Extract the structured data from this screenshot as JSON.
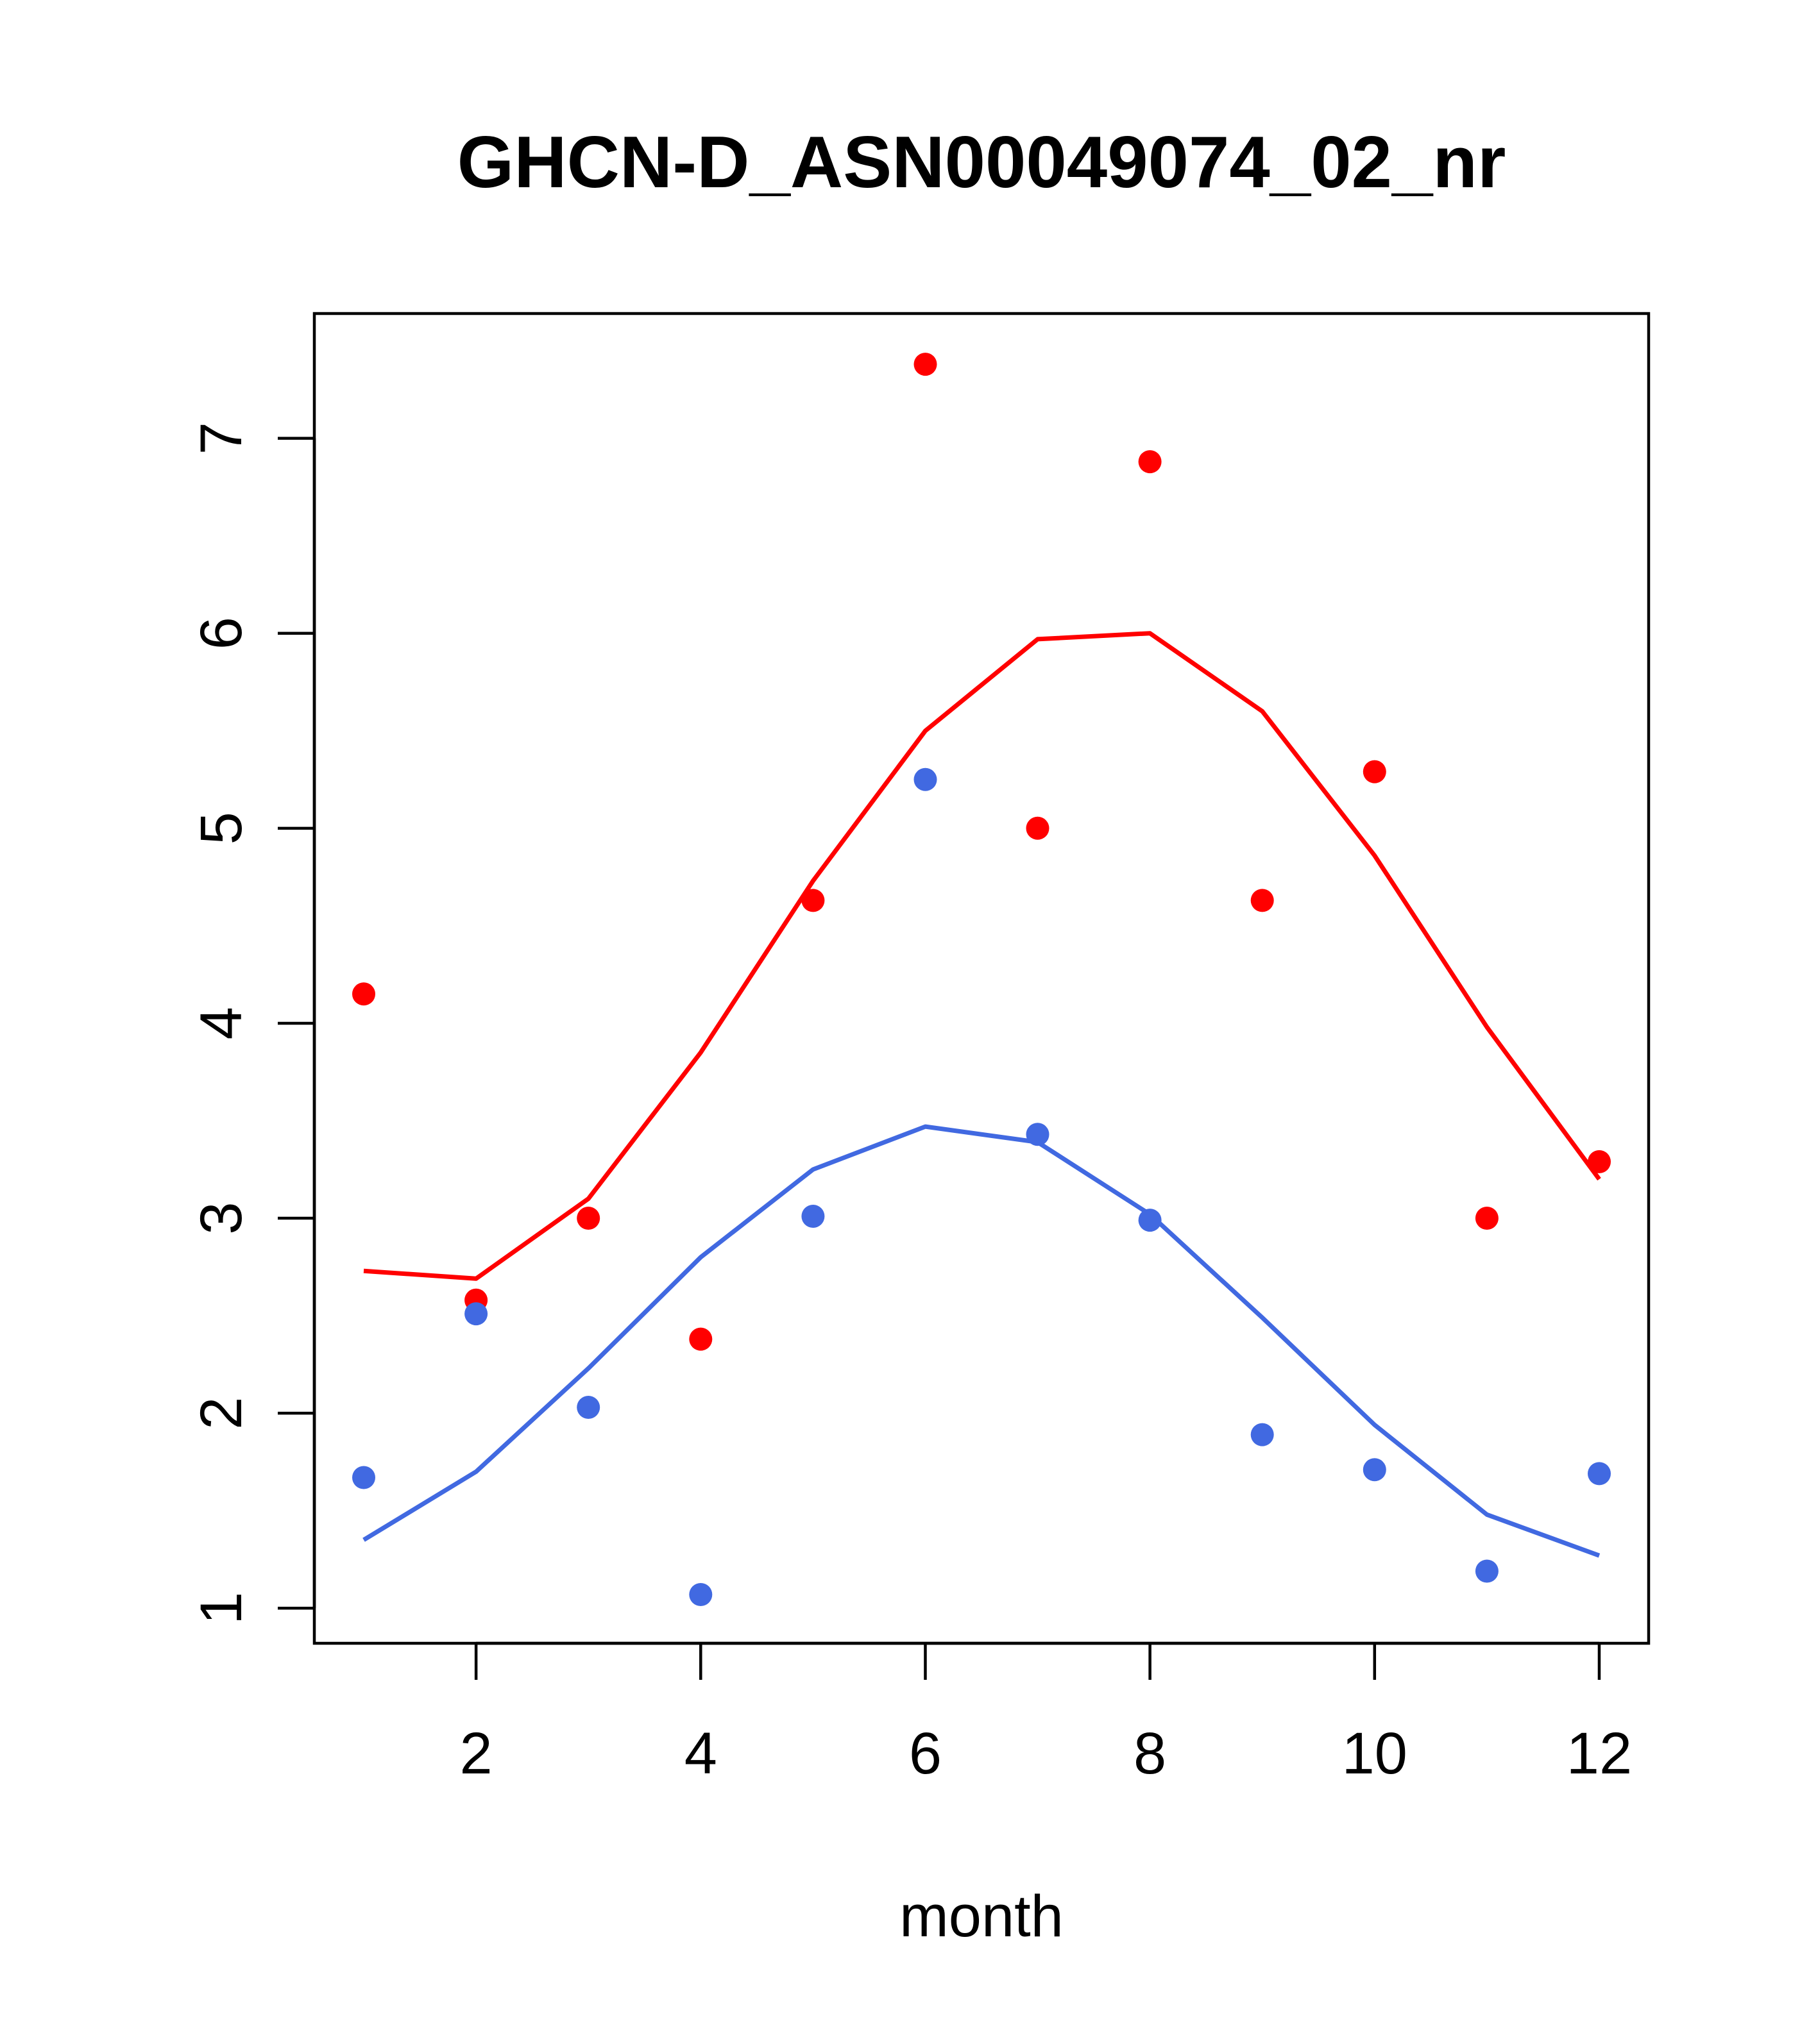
{
  "chart_data": {
    "type": "scatter",
    "title": "GHCN-D_ASN00049074_02_nr",
    "xlabel": "month",
    "ylabel": "",
    "xlim": [
      0.56,
      12.44
    ],
    "ylim": [
      0.82,
      7.64
    ],
    "xticks": [
      2,
      4,
      6,
      8,
      10,
      12
    ],
    "yticks": [
      1,
      2,
      3,
      4,
      5,
      6,
      7
    ],
    "grid": false,
    "series": [
      {
        "color": "#ff0000",
        "points": {
          "x": [
            1,
            2,
            3,
            4,
            5,
            6,
            7,
            8,
            9,
            10,
            11,
            12
          ],
          "y": [
            4.15,
            2.58,
            3.0,
            2.38,
            4.63,
            7.38,
            5.0,
            6.88,
            4.63,
            5.29,
            3.0,
            3.29
          ]
        },
        "line": {
          "x": [
            1,
            2,
            3,
            4,
            5,
            6,
            7,
            8,
            9,
            10,
            11,
            12
          ],
          "y": [
            2.73,
            2.69,
            3.1,
            3.85,
            4.73,
            5.5,
            5.97,
            6.0,
            5.6,
            4.86,
            3.98,
            3.2
          ]
        }
      },
      {
        "color": "#4169e1",
        "points": {
          "x": [
            1,
            2,
            3,
            4,
            5,
            6,
            7,
            8,
            9,
            10,
            11,
            12
          ],
          "y": [
            1.67,
            2.51,
            2.03,
            1.07,
            3.01,
            5.25,
            3.43,
            2.99,
            1.89,
            1.71,
            1.19,
            1.69
          ]
        },
        "line": {
          "x": [
            1,
            2,
            3,
            4,
            5,
            6,
            7,
            8,
            9,
            10,
            11,
            12
          ],
          "y": [
            1.35,
            1.7,
            2.23,
            2.8,
            3.25,
            3.47,
            3.39,
            3.02,
            2.49,
            1.94,
            1.48,
            1.27
          ]
        }
      }
    ]
  }
}
